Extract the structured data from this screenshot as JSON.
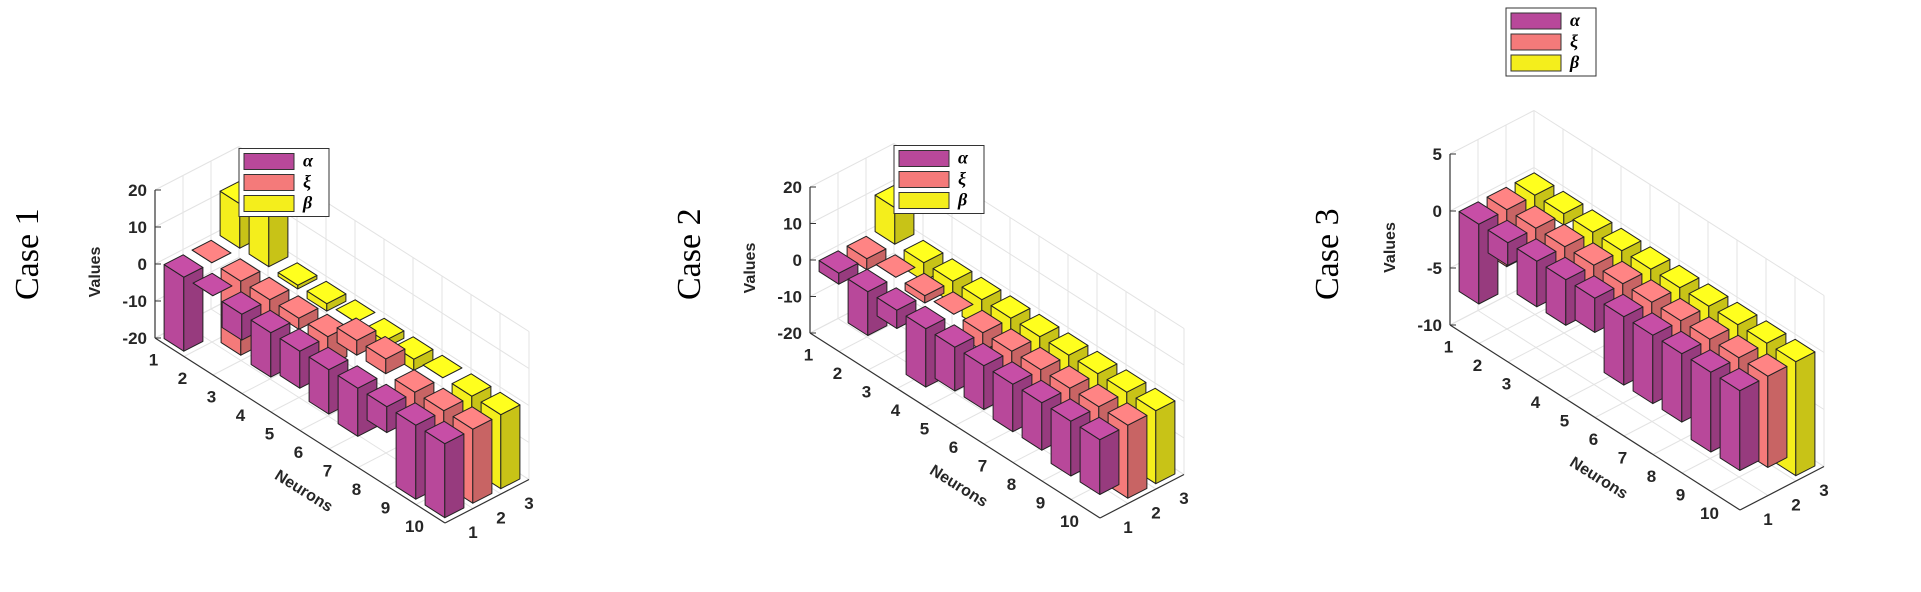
{
  "figure": {
    "categories": [
      "1",
      "2",
      "3",
      "4",
      "5",
      "6",
      "7",
      "8",
      "9",
      "10"
    ],
    "depth_ticks": [
      "1",
      "2",
      "3"
    ],
    "xlabel": "Neurons",
    "zlabel": "Values",
    "series_names": [
      "α",
      "ξ",
      "β"
    ],
    "colors": [
      "#b8489a",
      "#f47a7a",
      "#f4ee1c"
    ]
  },
  "chart_data": [
    {
      "type": "bar",
      "title": "Case 1",
      "categories": [
        "1",
        "2",
        "3",
        "4",
        "5",
        "6",
        "7",
        "8",
        "9",
        "10"
      ],
      "zlim": [
        -20,
        20
      ],
      "zticks": [
        -20,
        -10,
        0,
        10,
        20
      ],
      "series": [
        {
          "name": "α",
          "values": [
            -22,
            0,
            -7,
            -12,
            -10,
            -12,
            -13,
            -7,
            -23,
            -20
          ]
        },
        {
          "name": "ξ",
          "values": [
            0,
            -20,
            -10,
            -3,
            -8,
            4,
            4,
            -10,
            -21,
            -26
          ]
        },
        {
          "name": "β",
          "values": [
            12,
            22,
            -1,
            -2,
            0,
            -2,
            -3,
            0,
            -22,
            -24
          ]
        }
      ]
    },
    {
      "type": "bar",
      "title": "Case 2",
      "categories": [
        "1",
        "2",
        "3",
        "4",
        "5",
        "6",
        "7",
        "8",
        "9",
        "10"
      ],
      "zlim": [
        -20,
        20
      ],
      "zticks": [
        -20,
        -10,
        0,
        10,
        20
      ],
      "series": [
        {
          "name": "α",
          "values": [
            -3,
            -12,
            -5,
            -16,
            -12,
            -12,
            -13,
            -13,
            -15,
            -15
          ]
        },
        {
          "name": "ξ",
          "values": [
            -3,
            0,
            -2,
            0,
            -5,
            -12,
            -15,
            -15,
            -17,
            -20
          ]
        },
        {
          "name": "β",
          "values": [
            10,
            -5,
            -6,
            -8,
            -12,
            -12,
            -15,
            -13,
            -17,
            -20
          ]
        }
      ]
    },
    {
      "type": "bar",
      "title": "Case 3",
      "categories": [
        "1",
        "2",
        "3",
        "4",
        "5",
        "6",
        "7",
        "8",
        "9",
        "10"
      ],
      "zlim": [
        -10,
        5
      ],
      "zticks": [
        -10,
        -5,
        0,
        5
      ],
      "series": [
        {
          "name": "α",
          "values": [
            -7,
            -2,
            -4,
            -4,
            -3,
            -6,
            -6,
            -6,
            -7,
            -7
          ]
        },
        {
          "name": "ξ",
          "values": [
            -5,
            -4,
            -3,
            -3,
            -4,
            -6,
            -5,
            -4,
            -5,
            -8
          ]
        },
        {
          "name": "β",
          "values": [
            -4,
            -1,
            -2,
            -2,
            -6,
            -6,
            -6,
            -7,
            -8,
            -10
          ]
        }
      ]
    }
  ]
}
